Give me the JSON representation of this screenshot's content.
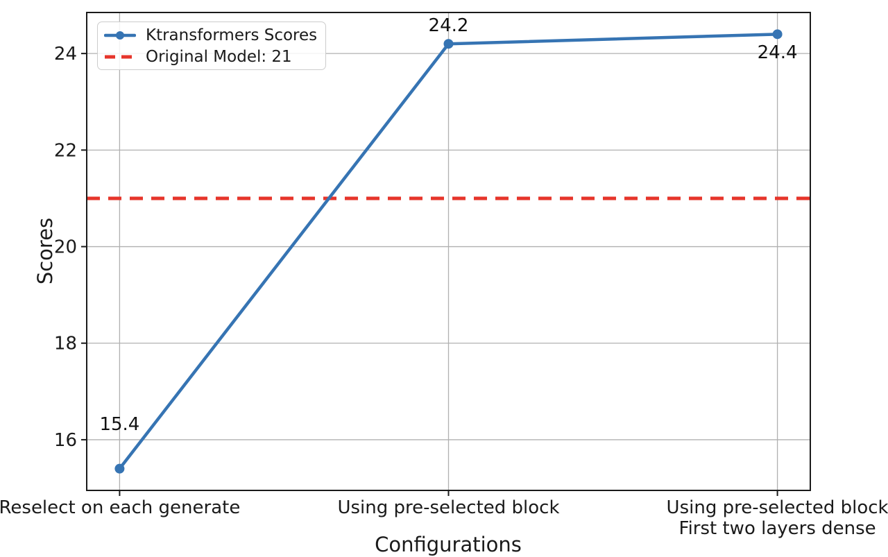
{
  "chart_data": {
    "type": "line",
    "title": "",
    "xlabel": "Configurations",
    "ylabel": "Scores",
    "categories": [
      "Reselect on each generate",
      "Using pre-selected block",
      "Using pre-selected block\nFirst two layers dense"
    ],
    "series": [
      {
        "name": "Ktransformers Scores",
        "values": [
          15.4,
          24.2,
          24.4
        ],
        "color": "#3674b3",
        "marker": "circle",
        "style": "solid"
      }
    ],
    "reference_line": {
      "label": "Original Model: 21",
      "value": 21,
      "color": "#e6352b",
      "style": "dashed"
    },
    "annotations": [
      "15.4",
      "24.2",
      "24.4"
    ],
    "yticks": [
      16,
      18,
      20,
      22,
      24
    ],
    "ylim": [
      14.95,
      24.85
    ],
    "xlim": [
      -0.1,
      2.1
    ],
    "grid": true,
    "grid_color": "#b0b0b0",
    "legend_position": "upper-left",
    "text_color": "#1a1a1a",
    "spine_color": "#1a1a1a"
  }
}
